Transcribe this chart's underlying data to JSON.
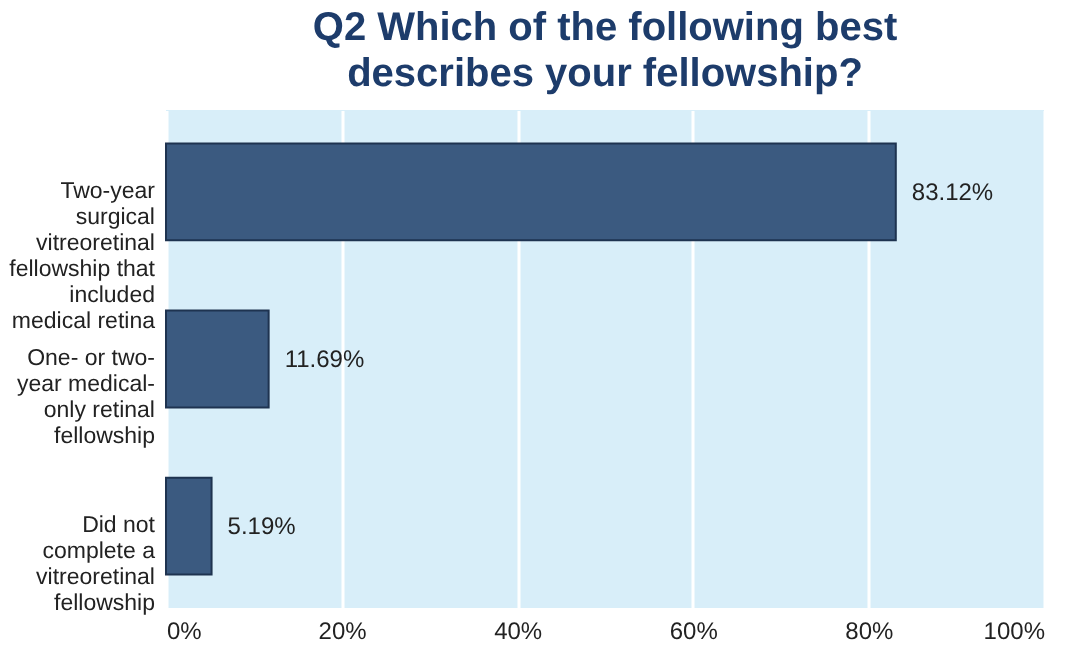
{
  "chart_data": {
    "type": "bar",
    "orientation": "horizontal",
    "title": "Q2 Which of the following best describes your fellowship?",
    "categories": [
      "Two-year surgical vitreoretinal fellowship that included medical retina",
      "One- or two-year medical-only retinal fellowship",
      "Did not complete a vitreoretinal fellowship"
    ],
    "values": [
      83.12,
      11.69,
      5.19
    ],
    "value_labels": [
      "83.12%",
      "11.69%",
      "5.19%"
    ],
    "color": "#3b5a80",
    "xlim": [
      0,
      100
    ],
    "xticks": [
      {
        "value": 0,
        "label": "0%"
      },
      {
        "value": 20,
        "label": "20%"
      },
      {
        "value": 40,
        "label": "40%"
      },
      {
        "value": 60,
        "label": "60%"
      },
      {
        "value": 80,
        "label": "80%"
      },
      {
        "value": 100,
        "label": "100%"
      }
    ],
    "grid": "x"
  }
}
